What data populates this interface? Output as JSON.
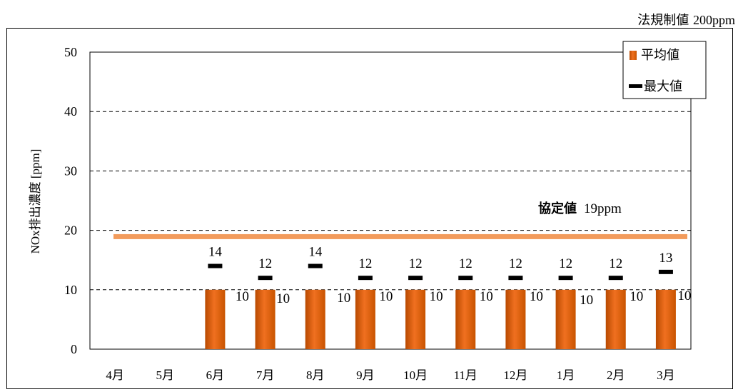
{
  "regulation": {
    "label": "法規制値",
    "value": "200ppm"
  },
  "chart_data": {
    "type": "bar",
    "ylabel": "NOx排出濃度 [ppm]",
    "ylim": [
      0,
      50
    ],
    "yticks": [
      "0",
      "10",
      "20",
      "30",
      "40",
      "50"
    ],
    "categories": [
      "4月",
      "5月",
      "6月",
      "7月",
      "8月",
      "9月",
      "10月",
      "11月",
      "12月",
      "1月",
      "2月",
      "3月"
    ],
    "series": [
      {
        "name": "平均値",
        "values": [
          null,
          null,
          10,
          10,
          10,
          10,
          10,
          10,
          10,
          10,
          10,
          10
        ],
        "labels": [
          "",
          "",
          "10",
          "10",
          "10",
          "10",
          "10",
          "10",
          "10",
          "10",
          "10",
          "10"
        ]
      },
      {
        "name": "最大値",
        "values": [
          null,
          null,
          14,
          12,
          14,
          12,
          12,
          12,
          12,
          12,
          12,
          13
        ],
        "labels": [
          "",
          "",
          "14",
          "12",
          "14",
          "12",
          "12",
          "12",
          "12",
          "12",
          "12",
          "13"
        ]
      }
    ],
    "agreement": {
      "label": "協定値",
      "value_text": "19ppm",
      "value": 19
    },
    "grid": true,
    "legend": "top-right",
    "colors": {
      "bar": "#e8650a",
      "bar_dark": "#b84a00",
      "max_marker": "#000000",
      "agreement_line": "#f29b5c"
    }
  }
}
